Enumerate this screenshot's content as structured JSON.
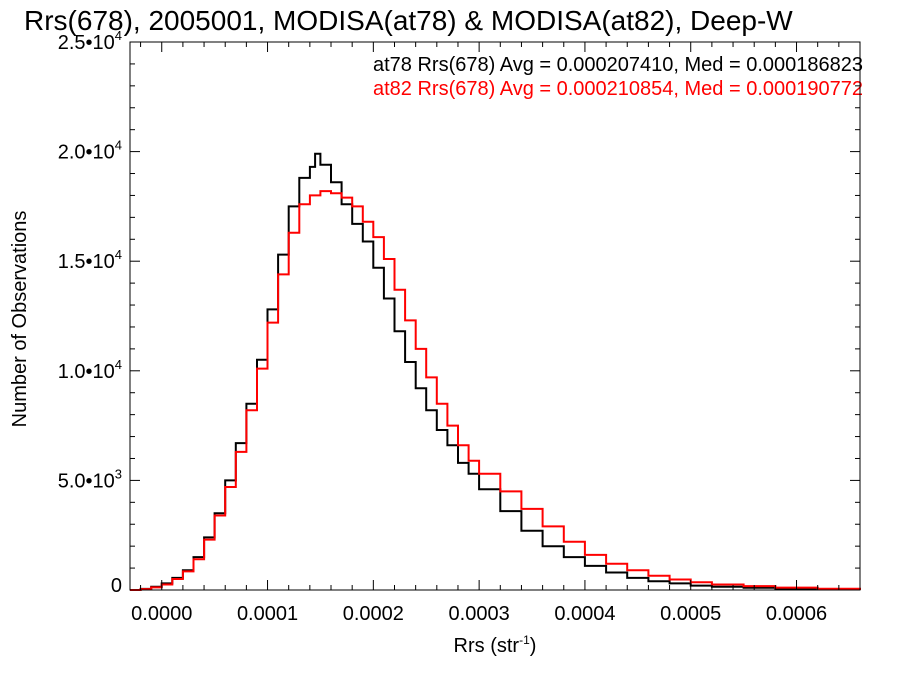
{
  "chart_data": {
    "type": "line",
    "title": "Rrs(678), 2005001, MODISA(at78) & MODISA(at82), Deep-W",
    "xlabel_base": "Rrs (str",
    "xlabel_sup": "-1",
    "xlabel_close": ")",
    "ylabel": "Number of Observations",
    "xlim": [
      -3e-05,
      0.00066
    ],
    "ylim": [
      0,
      25000
    ],
    "x_ticks": [
      {
        "value": 0.0,
        "label": "0.0000"
      },
      {
        "value": 0.0001,
        "label": "0.0001"
      },
      {
        "value": 0.0002,
        "label": "0.0002"
      },
      {
        "value": 0.0003,
        "label": "0.0003"
      },
      {
        "value": 0.0004,
        "label": "0.0004"
      },
      {
        "value": 0.0005,
        "label": "0.0005"
      },
      {
        "value": 0.0006,
        "label": "0.0006"
      }
    ],
    "y_ticks": [
      {
        "value": 0,
        "mant": "0",
        "exp": ""
      },
      {
        "value": 5000,
        "mant": "5.0•10",
        "exp": "3"
      },
      {
        "value": 10000,
        "mant": "1.0•10",
        "exp": "4"
      },
      {
        "value": 15000,
        "mant": "1.5•10",
        "exp": "4"
      },
      {
        "value": 20000,
        "mant": "2.0•10",
        "exp": "4"
      },
      {
        "value": 25000,
        "mant": "2.5•10",
        "exp": "4"
      }
    ],
    "legend": [
      {
        "text": "at78 Rrs(678) Avg = 0.000207410, Med = 0.000186823",
        "color": "#000000"
      },
      {
        "text": "at82 Rrs(678) Avg = 0.000210854, Med = 0.000190772",
        "color": "#ff0000"
      }
    ],
    "legend_placement": "top-right",
    "series": [
      {
        "color": "#000000",
        "x": [
          -3e-05,
          -2e-05,
          -1e-05,
          0.0,
          1e-05,
          2e-05,
          3e-05,
          4e-05,
          5e-05,
          6e-05,
          7e-05,
          8e-05,
          9e-05,
          0.0001,
          0.00011,
          0.00012,
          0.00013,
          0.00014,
          0.000145,
          0.00015,
          0.00016,
          0.00017,
          0.00018,
          0.00019,
          0.0002,
          0.00021,
          0.00022,
          0.00023,
          0.00024,
          0.00025,
          0.00026,
          0.00027,
          0.00028,
          0.00029,
          0.0003,
          0.00032,
          0.00034,
          0.00036,
          0.00038,
          0.0004,
          0.00042,
          0.00044,
          0.00046,
          0.00048,
          0.0005,
          0.00052,
          0.00055,
          0.00058,
          0.00062,
          0.00066
        ],
        "values": [
          0,
          50,
          150,
          300,
          550,
          900,
          1500,
          2400,
          3500,
          5000,
          6700,
          8500,
          10500,
          12800,
          15300,
          17500,
          18800,
          19300,
          19900,
          19400,
          18600,
          17600,
          16700,
          15900,
          14700,
          13300,
          11800,
          10400,
          9200,
          8200,
          7300,
          6600,
          5800,
          5300,
          4600,
          3600,
          2700,
          2000,
          1500,
          1100,
          800,
          550,
          400,
          300,
          200,
          150,
          100,
          60,
          30,
          0
        ]
      },
      {
        "color": "#ff0000",
        "x": [
          -3e-05,
          -2e-05,
          -1e-05,
          0.0,
          1e-05,
          2e-05,
          3e-05,
          4e-05,
          5e-05,
          6e-05,
          7e-05,
          8e-05,
          9e-05,
          0.0001,
          0.00011,
          0.00012,
          0.00013,
          0.00014,
          0.00015,
          0.00016,
          0.00017,
          0.00018,
          0.00019,
          0.0002,
          0.00021,
          0.00022,
          0.00023,
          0.00024,
          0.00025,
          0.00026,
          0.00027,
          0.00028,
          0.00029,
          0.0003,
          0.00032,
          0.00034,
          0.00036,
          0.00038,
          0.0004,
          0.00042,
          0.00044,
          0.00046,
          0.00048,
          0.0005,
          0.00052,
          0.00055,
          0.00058,
          0.00062,
          0.00066
        ],
        "values": [
          0,
          40,
          120,
          250,
          500,
          850,
          1400,
          2300,
          3400,
          4700,
          6300,
          8200,
          10100,
          12200,
          14400,
          16300,
          17600,
          18000,
          18200,
          18100,
          17900,
          17500,
          16800,
          16100,
          15100,
          13700,
          12300,
          11000,
          9700,
          8500,
          7500,
          6600,
          5900,
          5300,
          4500,
          3700,
          2900,
          2200,
          1600,
          1200,
          900,
          650,
          480,
          350,
          250,
          180,
          110,
          60,
          0
        ]
      }
    ]
  }
}
